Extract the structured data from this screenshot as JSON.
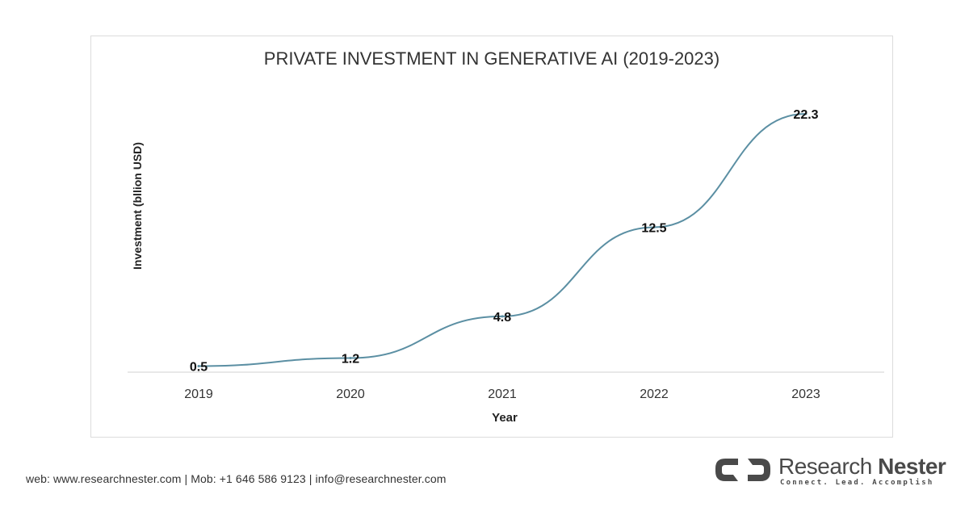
{
  "chart_data": {
    "type": "line",
    "title": "PRIVATE INVESTMENT IN GENERATIVE AI (2019-2023)",
    "xlabel": "Year",
    "ylabel": "Investment (bllion USD)",
    "categories": [
      "2019",
      "2020",
      "2021",
      "2022",
      "2023"
    ],
    "series": [
      {
        "values": [
          0.5,
          1.2,
          4.8,
          12.5,
          22.3
        ],
        "data_labels": [
          "0.5",
          "1.2",
          "4.8",
          "12.5",
          "22.3"
        ]
      }
    ],
    "ylim": [
      0,
      22.3
    ],
    "grid": false,
    "legend": "none",
    "line_color": "#5b8fa3"
  },
  "footer": {
    "contact": "web: www.researchnester.com | Mob: +1 646 586 9123 | info@researchnester.com"
  },
  "brand": {
    "name_part1": "Research",
    "name_part2": "Nester",
    "tagline": "Connect. Lead. Accomplish",
    "icon": "research-nester-logo-icon",
    "colors": {
      "text": "#4a4a4a",
      "icon": "#4a4a4a"
    }
  }
}
